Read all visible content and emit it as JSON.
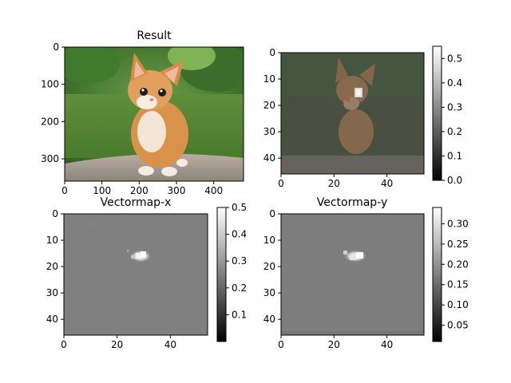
{
  "chart_data": [
    {
      "type": "image",
      "title": "Result",
      "content": "photo of an orange kitten sitting on a stone slab in front of grass and green foliage",
      "x_ticks": [
        0,
        100,
        200,
        300,
        400
      ],
      "y_ticks": [
        0,
        100,
        200,
        300
      ],
      "xlim": [
        0,
        480
      ],
      "ylim": [
        360,
        0
      ]
    },
    {
      "type": "heatmap",
      "title": "",
      "content": "low-resolution overlay of the kitten on a dark grey field with a bright spot near the eye",
      "x_ticks": [
        0,
        20,
        40
      ],
      "y_ticks": [
        0,
        10,
        20,
        30,
        40
      ],
      "xlim": [
        0,
        54
      ],
      "ylim": [
        46,
        0
      ],
      "colorbar": {
        "ticks": [
          "0.0",
          "0.1",
          "0.2",
          "0.3",
          "0.4",
          "0.5"
        ],
        "vmin": 0.0,
        "vmax": 0.55
      }
    },
    {
      "type": "heatmap",
      "title": "Vectormap-x",
      "content": "uniform grey field with a small bright cluster around x≈28, y≈16",
      "x_ticks": [
        0,
        20,
        40
      ],
      "y_ticks": [
        0,
        10,
        20,
        30,
        40
      ],
      "xlim": [
        0,
        54
      ],
      "ylim": [
        46,
        0
      ],
      "colorbar": {
        "ticks": [
          "0.1",
          "0.2",
          "0.3",
          "0.4",
          "0.5"
        ],
        "vmin": 0.0,
        "vmax": 0.5
      }
    },
    {
      "type": "heatmap",
      "title": "Vectormap-y",
      "content": "uniform grey field with a small bright cluster around x≈27, y≈16",
      "x_ticks": [
        0,
        20,
        40
      ],
      "y_ticks": [
        0,
        10,
        20,
        30,
        40
      ],
      "xlim": [
        0,
        54
      ],
      "ylim": [
        46,
        0
      ],
      "colorbar": {
        "ticks": [
          "0.05",
          "0.10",
          "0.15",
          "0.20",
          "0.25",
          "0.30"
        ],
        "vmin": 0.01,
        "vmax": 0.34
      }
    }
  ]
}
